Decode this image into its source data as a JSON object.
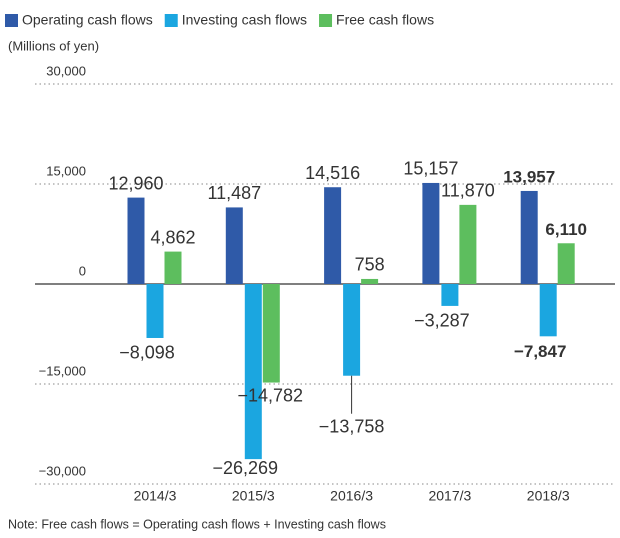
{
  "chart_data": {
    "type": "bar",
    "ylabel": "(Millions of yen)",
    "note": "Note: Free cash flows = Operating cash flows + Investing cash flows",
    "categories": [
      "2014/3",
      "2015/3",
      "2016/3",
      "2017/3",
      "2018/3"
    ],
    "series": [
      {
        "name": "Operating cash flows",
        "color": "#2f5aa8",
        "values": [
          12960,
          11487,
          14516,
          15157,
          13957
        ],
        "value_labels": [
          "12,960",
          "11,487",
          "14,516",
          "15,157",
          "13,957"
        ]
      },
      {
        "name": "Investing cash flows",
        "color": "#1ba6e0",
        "values": [
          -8098,
          -26269,
          -13758,
          -3287,
          -7847
        ],
        "value_labels": [
          "−8,098",
          "−26,269",
          "−13,758",
          "−3,287",
          "−7,847"
        ]
      },
      {
        "name": "Free cash flows",
        "color": "#5dbe5e",
        "values": [
          4862,
          -14782,
          758,
          11870,
          6110
        ],
        "value_labels": [
          "4,862",
          "−14,782",
          "758",
          "11,870",
          "6,110"
        ]
      }
    ],
    "ylim": [
      -30000,
      30000
    ],
    "yticks": [
      {
        "value": -30000,
        "label": "−30,000"
      },
      {
        "value": -15000,
        "label": "−15,000"
      },
      0,
      {
        "value": 15000,
        "label": "15,000"
      },
      {
        "value": 30000,
        "label": "30,000"
      }
    ],
    "grid": true,
    "legend": "top-left",
    "bold_last": true
  }
}
